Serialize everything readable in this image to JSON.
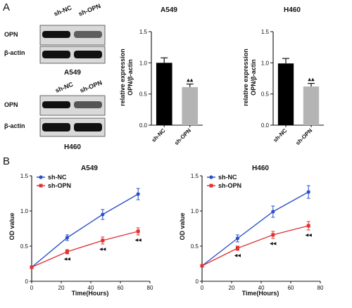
{
  "panels": {
    "a": "A",
    "b": "B"
  },
  "blots": [
    {
      "cell_line": "A549",
      "lanes": [
        "sh-NC",
        "sh-OPN"
      ],
      "rows": [
        {
          "label": "OPN",
          "intensity": [
            1.0,
            0.55
          ]
        },
        {
          "label": "β-actin",
          "intensity": [
            1.0,
            1.0
          ]
        }
      ]
    },
    {
      "cell_line": "H460",
      "lanes": [
        "sh-NC",
        "sh-OPN"
      ],
      "rows": [
        {
          "label": "OPN",
          "intensity": [
            1.0,
            0.6
          ]
        },
        {
          "label": "β-actin",
          "intensity": [
            1.0,
            1.0
          ]
        }
      ]
    }
  ],
  "chart_data": [
    {
      "type": "bar",
      "title": "A549",
      "categories": [
        "sh-NC",
        "sh-OPN"
      ],
      "values": [
        1.0,
        0.61
      ],
      "errors": [
        0.08,
        0.05
      ],
      "significance": [
        "",
        "▲▲"
      ],
      "ylabel_line1": "relative expression",
      "ylabel_line2": "OPN/β-actin",
      "ylim": [
        0,
        1.5
      ],
      "yticks": [
        "0.0",
        "0.5",
        "1.0",
        "1.5"
      ],
      "colors": [
        "#000000",
        "#b4b4b4"
      ]
    },
    {
      "type": "bar",
      "title": "H460",
      "categories": [
        "sh-NC",
        "sh-OPN"
      ],
      "values": [
        0.99,
        0.62
      ],
      "errors": [
        0.08,
        0.05
      ],
      "significance": [
        "",
        "▲▲"
      ],
      "ylabel_line1": "relative expression",
      "ylabel_line2": "OPN/β-actin",
      "ylim": [
        0,
        1.5
      ],
      "yticks": [
        "0.0",
        "0.5",
        "1.0",
        "1.5"
      ],
      "colors": [
        "#000000",
        "#b4b4b4"
      ]
    },
    {
      "type": "line",
      "title": "A549",
      "xlabel": "Time(Hours)",
      "ylabel": "OD value",
      "xlim": [
        0,
        80
      ],
      "ylim": [
        0,
        1.5
      ],
      "xticks": [
        "0",
        "20",
        "40",
        "60",
        "80"
      ],
      "yticks": [
        "0",
        "0.5",
        "1.0",
        "1.5"
      ],
      "x": [
        0,
        24,
        48,
        72
      ],
      "legend_position": "top-left",
      "series": [
        {
          "name": "sh-NC",
          "color": "#2b50c8",
          "values": [
            0.2,
            0.62,
            0.95,
            1.24
          ],
          "errors": [
            0,
            0.04,
            0.07,
            0.08
          ]
        },
        {
          "name": "sh-OPN",
          "color": "#e03232",
          "values": [
            0.2,
            0.42,
            0.58,
            0.71
          ],
          "errors": [
            0,
            0.03,
            0.05,
            0.05
          ]
        }
      ],
      "significance_mark": "◀◀"
    },
    {
      "type": "line",
      "title": "H460",
      "xlabel": "Time(Hours)",
      "ylabel": "OD value",
      "xlim": [
        0,
        80
      ],
      "ylim": [
        0,
        1.5
      ],
      "xticks": [
        "0",
        "20",
        "40",
        "60",
        "80"
      ],
      "yticks": [
        "0",
        "0.5",
        "1.0",
        "1.5"
      ],
      "x": [
        0,
        24,
        48,
        72
      ],
      "legend_position": "top-left",
      "series": [
        {
          "name": "sh-NC",
          "color": "#2b50c8",
          "values": [
            0.22,
            0.61,
            0.99,
            1.27
          ],
          "errors": [
            0,
            0.05,
            0.08,
            0.09
          ]
        },
        {
          "name": "sh-OPN",
          "color": "#e03232",
          "values": [
            0.22,
            0.47,
            0.66,
            0.79
          ],
          "errors": [
            0,
            0.03,
            0.05,
            0.06
          ]
        }
      ],
      "significance_mark": "◀◀"
    }
  ]
}
